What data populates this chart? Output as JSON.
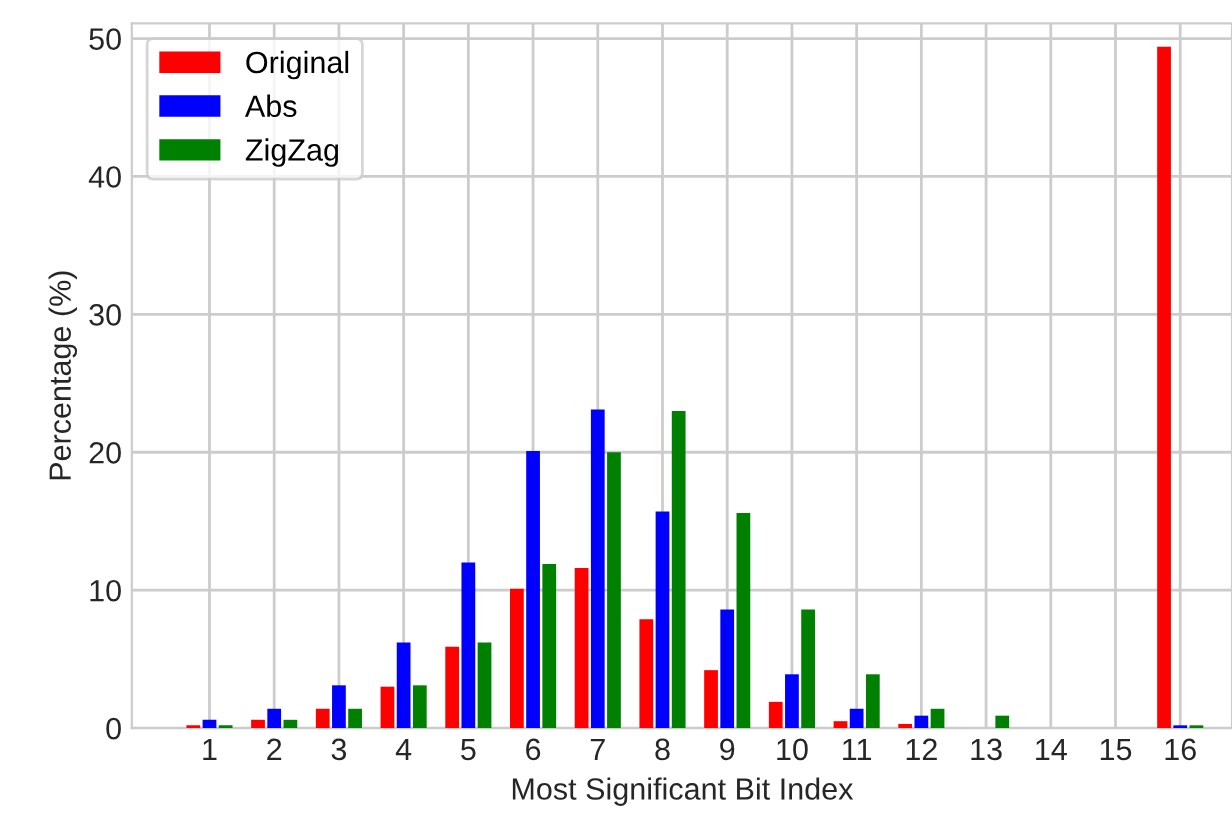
{
  "chart_data": {
    "type": "bar",
    "xlabel": "Most Significant Bit Index",
    "ylabel": "Percentage (%)",
    "categories": [
      "1",
      "2",
      "3",
      "4",
      "5",
      "6",
      "7",
      "8",
      "9",
      "10",
      "11",
      "12",
      "13",
      "14",
      "15",
      "16"
    ],
    "series": [
      {
        "name": "Original",
        "color": "#ff0000",
        "values": [
          0.2,
          0.6,
          1.4,
          3.0,
          5.9,
          10.1,
          11.6,
          7.9,
          4.2,
          1.9,
          0.5,
          0.3,
          0,
          0,
          0,
          49.4
        ]
      },
      {
        "name": "Abs",
        "color": "#0000ff",
        "values": [
          0.6,
          1.4,
          3.1,
          6.2,
          12.0,
          20.1,
          23.1,
          15.7,
          8.6,
          3.9,
          1.4,
          0.9,
          0,
          0,
          0,
          0.2
        ]
      },
      {
        "name": "ZigZag",
        "color": "#008000",
        "values": [
          0.2,
          0.6,
          1.4,
          3.1,
          6.2,
          11.9,
          20.0,
          23.0,
          15.6,
          8.6,
          3.9,
          1.4,
          0.9,
          0,
          0,
          0.2
        ]
      }
    ],
    "ylim": [
      0,
      51.1
    ],
    "yticks": [
      0,
      10,
      20,
      30,
      40,
      50
    ],
    "grid": true,
    "legend": "top left"
  }
}
